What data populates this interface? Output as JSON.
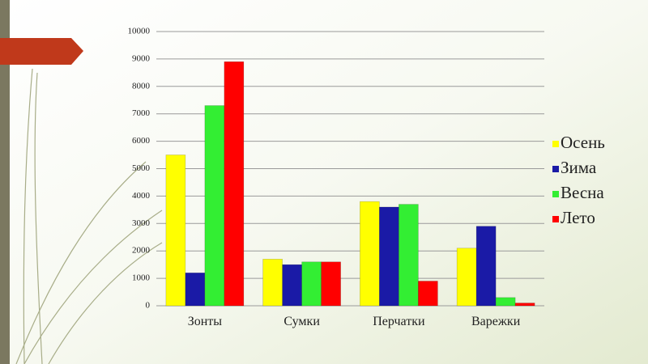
{
  "chart_data": {
    "type": "bar",
    "categories": [
      "Зонты",
      "Сумки",
      "Перчатки",
      "Варежки"
    ],
    "series": [
      {
        "name": "Осень",
        "color": "#ffff00",
        "values": [
          5500,
          1700,
          3800,
          2100
        ]
      },
      {
        "name": "Зима",
        "color": "#1a1aa6",
        "values": [
          1200,
          1500,
          3600,
          2900
        ]
      },
      {
        "name": "Весна",
        "color": "#33ee33",
        "values": [
          7300,
          1600,
          3700,
          300
        ]
      },
      {
        "name": "Лето",
        "color": "#ff0000",
        "values": [
          8900,
          1600,
          900,
          100
        ]
      }
    ],
    "ylim": [
      0,
      10000
    ],
    "yticks": [
      0,
      1000,
      2000,
      3000,
      4000,
      5000,
      6000,
      7000,
      8000,
      9000,
      10000
    ],
    "grid": true,
    "legend": "right"
  }
}
